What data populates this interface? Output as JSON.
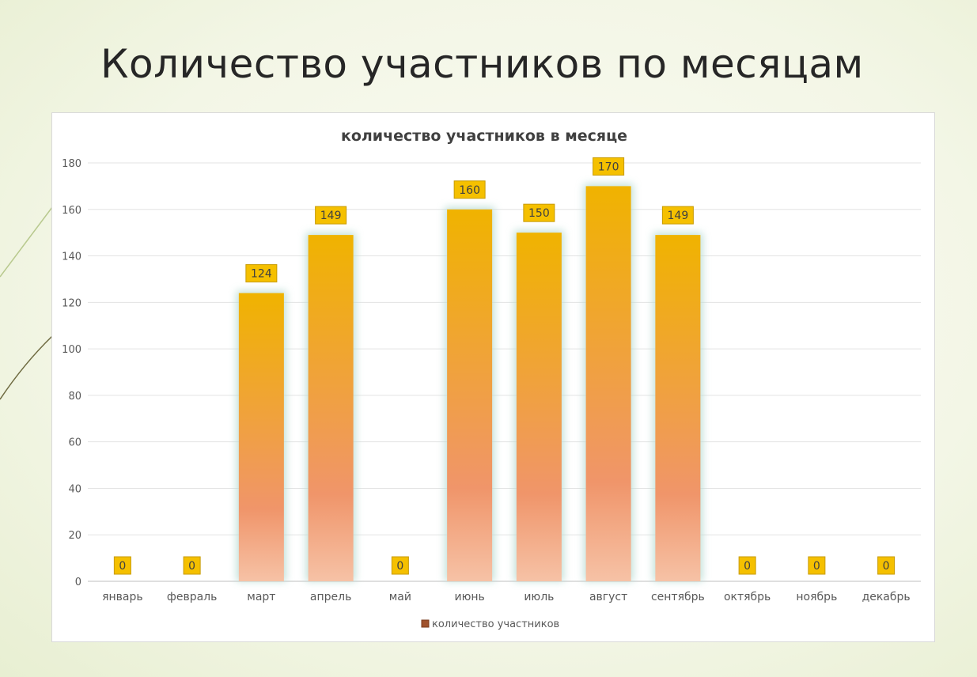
{
  "slide": {
    "title": "Количество участников по месяцам"
  },
  "chart_data": {
    "type": "bar",
    "title": "количество участников в месяце",
    "categories": [
      "январь",
      "февраль",
      "март",
      "апрель",
      "май",
      "июнь",
      "июль",
      "август",
      "сентябрь",
      "октябрь",
      "ноябрь",
      "декабрь"
    ],
    "series": [
      {
        "name": "количество участников",
        "values": [
          0,
          0,
          124,
          149,
          0,
          160,
          150,
          170,
          149,
          0,
          0,
          0
        ]
      }
    ],
    "ylim": [
      0,
      180
    ],
    "yticks": [
      0,
      20,
      40,
      60,
      80,
      100,
      120,
      140,
      160,
      180
    ],
    "grid": true,
    "legend": "bottom",
    "data_labels": true,
    "colors": {
      "bar_top": "#f0b300",
      "bar_mid": "#f0956a",
      "bar_bottom": "#f6c2a6",
      "label_fill": "#f5c000",
      "label_border": "#c79a00",
      "glow": "#b9dcd3"
    }
  }
}
